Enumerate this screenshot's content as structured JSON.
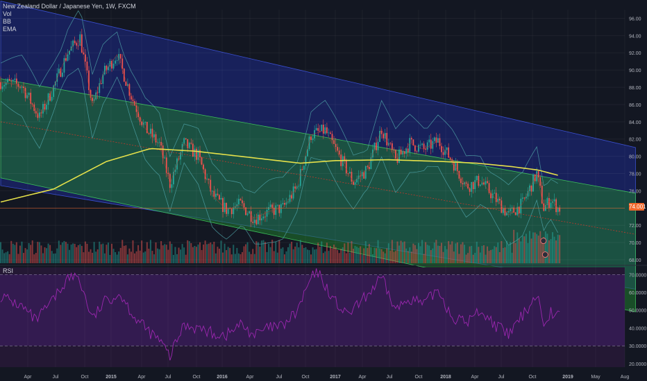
{
  "header": {
    "title": "New Zealand Dollar / Japanese Yen, 1W, FXCM",
    "indicators": [
      "Vol",
      "BB",
      "EMA"
    ]
  },
  "rsi_pane": {
    "label": "RSI"
  },
  "last_price_tag": "74.001",
  "colors": {
    "background": "#131722",
    "up_candle": "#26a69a",
    "down_candle": "#ef5350",
    "ema": "#e6e14a",
    "bollinger": "#4fa3a7",
    "channel_outer": "#1e2a8a",
    "channel_inner": "#1f7a2e",
    "rsi_line": "#9c27b0",
    "rsi_band": "#3a1d5c",
    "price_tag": "#f2682c"
  },
  "chart_data": [
    {
      "type": "candlestick",
      "title": "New Zealand Dollar / Japanese Yen, 1W, FXCM",
      "ylim": [
        67.6,
        97.0
      ],
      "y_ticks": [
        68.0,
        70.0,
        72.0,
        74.0,
        76.0,
        78.0,
        80.0,
        82.0,
        84.0,
        86.0,
        88.0,
        90.0,
        92.0,
        94.0,
        96.0
      ],
      "x_ticks": [
        "Apr",
        "Jul",
        "Oct",
        "2015",
        "Apr",
        "Jul",
        "Oct",
        "2016",
        "Apr",
        "Jul",
        "Oct",
        "2017",
        "Apr",
        "Jul",
        "Oct",
        "2018",
        "Apr",
        "Jul",
        "Oct",
        "2019",
        "May",
        "Aug"
      ],
      "close_anchors": [
        [
          0,
          88.6
        ],
        [
          12,
          88.2
        ],
        [
          22,
          84.5
        ],
        [
          30,
          88.0
        ],
        [
          38,
          92.0
        ],
        [
          45,
          93.8
        ],
        [
          52,
          85.8
        ],
        [
          58,
          89.5
        ],
        [
          66,
          91.8
        ],
        [
          74,
          87.0
        ],
        [
          82,
          83.2
        ],
        [
          90,
          81.4
        ],
        [
          96,
          76.8
        ],
        [
          104,
          81.5
        ],
        [
          112,
          80.0
        ],
        [
          120,
          75.5
        ],
        [
          128,
          73.8
        ],
        [
          136,
          74.4
        ],
        [
          144,
          72.8
        ],
        [
          152,
          73.6
        ],
        [
          160,
          74.0
        ],
        [
          168,
          76.4
        ],
        [
          176,
          82.5
        ],
        [
          184,
          83.0
        ],
        [
          192,
          80.0
        ],
        [
          200,
          77.0
        ],
        [
          208,
          78.5
        ],
        [
          216,
          83.2
        ],
        [
          224,
          79.5
        ],
        [
          232,
          81.5
        ],
        [
          240,
          80.8
        ],
        [
          248,
          81.8
        ],
        [
          256,
          79.5
        ],
        [
          264,
          76.5
        ],
        [
          272,
          77.2
        ],
        [
          280,
          75.2
        ],
        [
          288,
          73.2
        ],
        [
          296,
          74.5
        ],
        [
          304,
          78.0
        ],
        [
          308,
          74.0
        ],
        [
          312,
          75.0
        ],
        [
          316,
          74.0
        ]
      ],
      "ema": [
        [
          0,
          74.7
        ],
        [
          30,
          76.2
        ],
        [
          60,
          79.4
        ],
        [
          85,
          80.9
        ],
        [
          110,
          80.6
        ],
        [
          140,
          79.9
        ],
        [
          170,
          79.2
        ],
        [
          190,
          79.5
        ],
        [
          220,
          79.6
        ],
        [
          250,
          79.4
        ],
        [
          270,
          79.2
        ],
        [
          290,
          78.8
        ],
        [
          305,
          78.4
        ],
        [
          316,
          77.8
        ]
      ],
      "channel_outer": {
        "upper": [
          [
            0,
            98.0
          ],
          [
            318,
            83.0
          ]
        ],
        "lower": [
          [
            0,
            76.6
          ],
          [
            318,
            66.0
          ]
        ]
      },
      "channel_inner": {
        "upper": [
          [
            0,
            89.0
          ],
          [
            336,
            76.6
          ]
        ],
        "lower": [
          [
            0,
            77.5
          ],
          [
            336,
            63.0
          ]
        ]
      },
      "median_line": [
        [
          0,
          84.0
        ],
        [
          345,
          71.5
        ]
      ],
      "last_price": 74.0
    },
    {
      "type": "line",
      "title": "RSI",
      "ylim": [
        18,
        74
      ],
      "y_ticks": [
        20.0,
        30.0,
        40.0,
        50.0,
        60.0,
        70.0
      ],
      "levels": [
        30,
        70
      ],
      "anchors": [
        [
          0,
          58
        ],
        [
          12,
          52
        ],
        [
          20,
          44
        ],
        [
          30,
          56
        ],
        [
          38,
          68
        ],
        [
          44,
          69
        ],
        [
          52,
          45
        ],
        [
          60,
          56
        ],
        [
          68,
          59
        ],
        [
          76,
          46
        ],
        [
          84,
          38
        ],
        [
          90,
          33
        ],
        [
          96,
          24
        ],
        [
          104,
          42
        ],
        [
          112,
          40
        ],
        [
          120,
          37
        ],
        [
          128,
          36
        ],
        [
          136,
          42
        ],
        [
          144,
          36
        ],
        [
          152,
          40
        ],
        [
          160,
          41
        ],
        [
          168,
          49
        ],
        [
          176,
          68
        ],
        [
          180,
          71
        ],
        [
          188,
          57
        ],
        [
          196,
          47
        ],
        [
          204,
          54
        ],
        [
          216,
          68
        ],
        [
          224,
          50
        ],
        [
          232,
          57
        ],
        [
          240,
          53
        ],
        [
          248,
          62
        ],
        [
          256,
          46
        ],
        [
          264,
          43
        ],
        [
          272,
          50
        ],
        [
          280,
          42
        ],
        [
          288,
          36
        ],
        [
          296,
          47
        ],
        [
          304,
          59
        ],
        [
          308,
          44
        ],
        [
          312,
          49
        ],
        [
          316,
          47
        ]
      ]
    }
  ]
}
